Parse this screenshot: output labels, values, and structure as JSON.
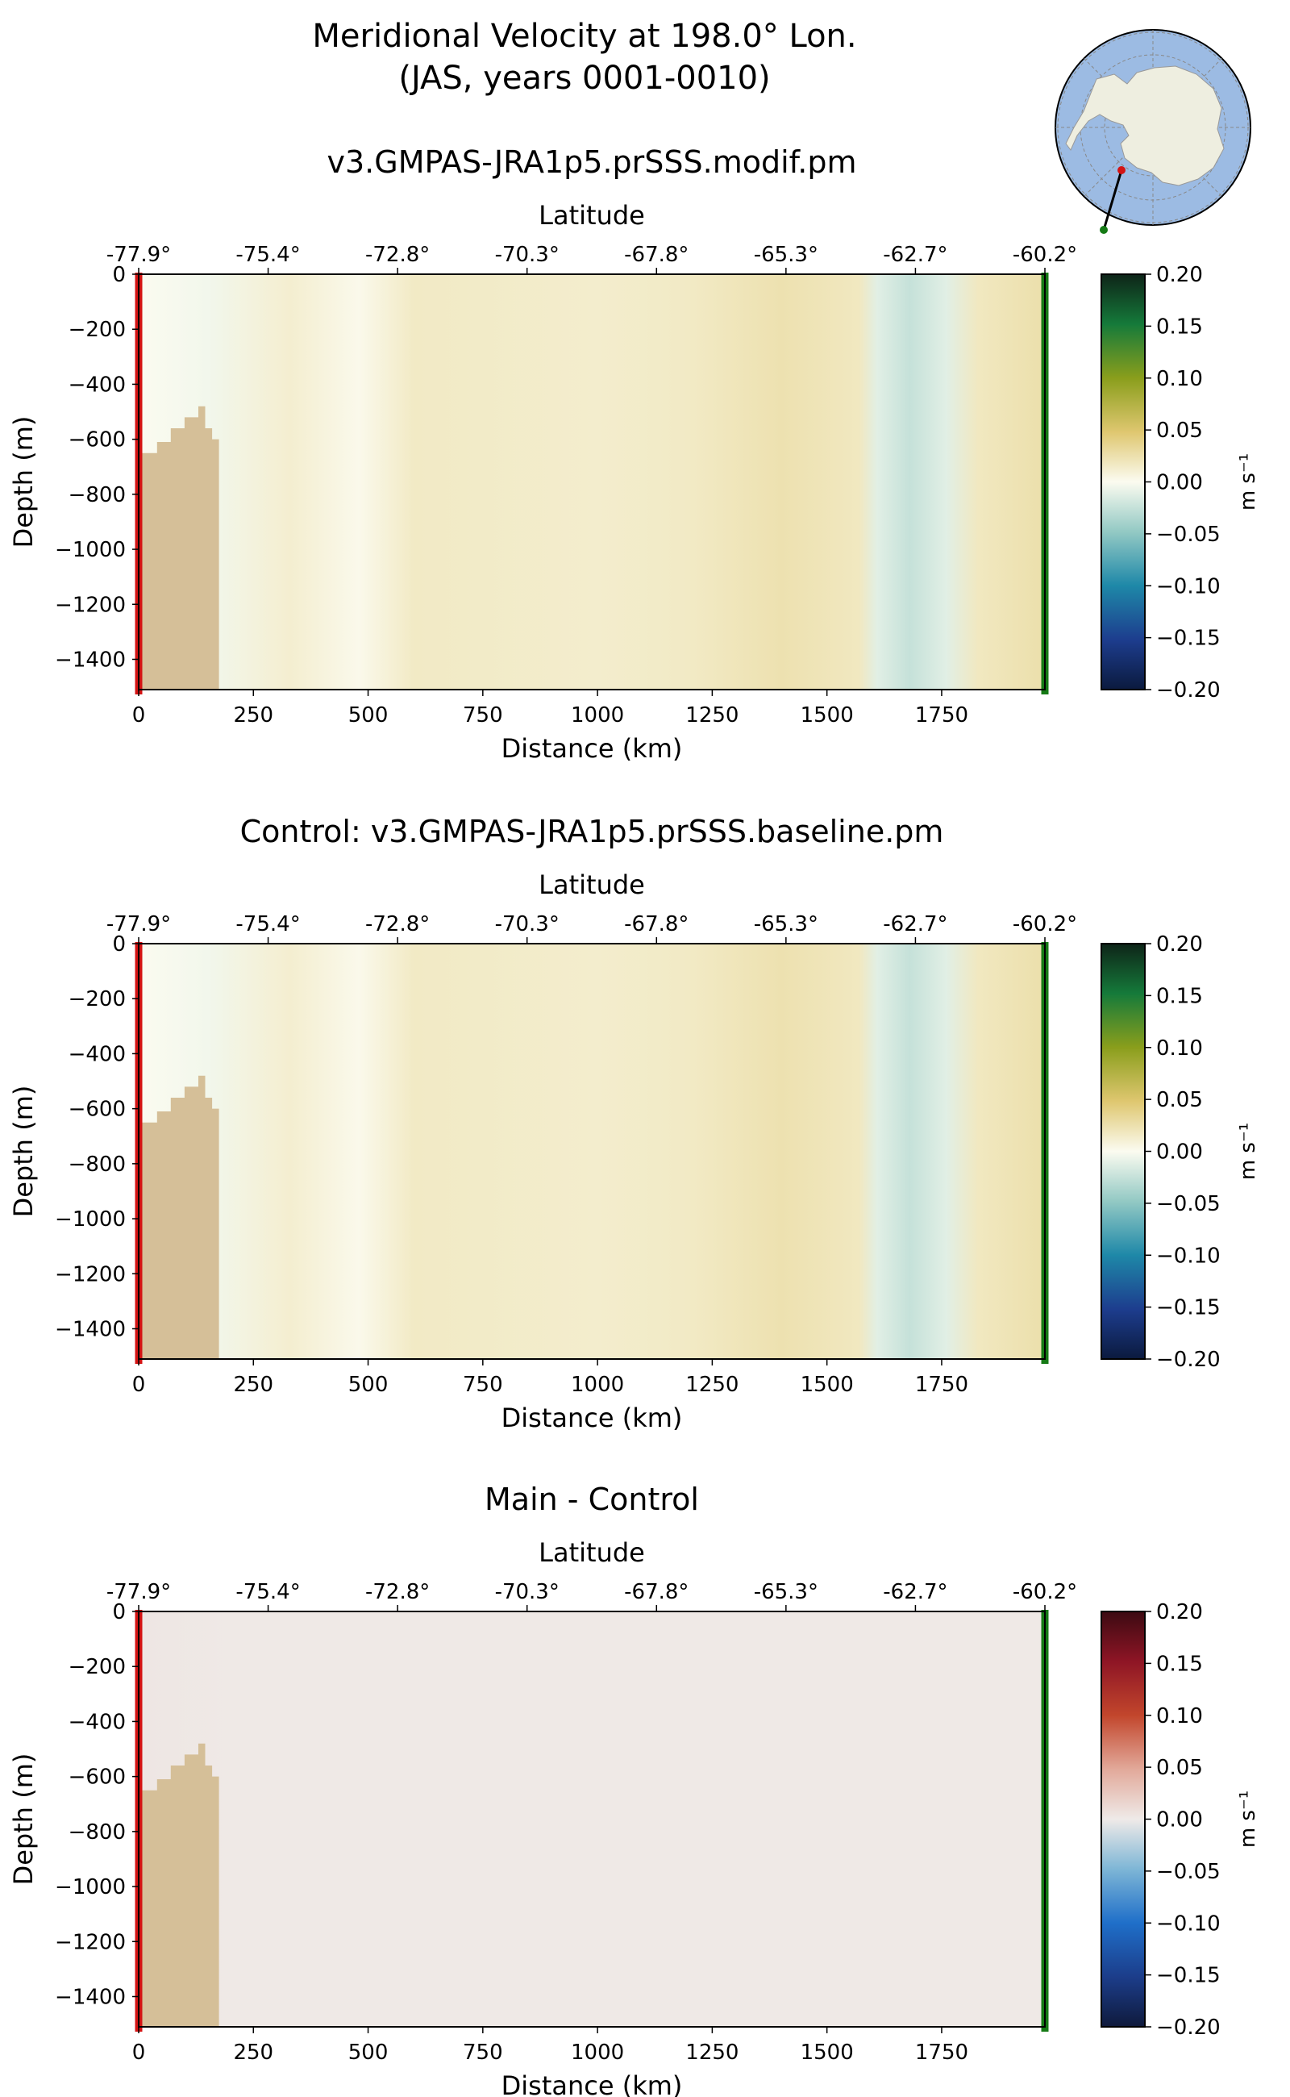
{
  "figure": {
    "title_line1": "Meridional Velocity at 198.0° Lon.",
    "title_line2": "(JAS, years 0001-0010)"
  },
  "colors": {
    "bathymetry": "#d5bf98",
    "start_marker": "#d41414",
    "end_marker": "#157a15",
    "globe_ocean": "#9cbbe3",
    "globe_land": "#eeeee0"
  },
  "chart_data": [
    {
      "type": "heatmap",
      "title": "v3.GMPAS-JRA1p5.prSSS.modif.pm",
      "xlabel": "Distance (km)",
      "ylabel": "Depth (m)",
      "top_xlabel": "Latitude",
      "xlim": [
        0,
        1975
      ],
      "ylim": [
        -1510,
        0
      ],
      "xticks": [
        "0",
        "250",
        "500",
        "750",
        "1000",
        "1250",
        "1500",
        "1750"
      ],
      "yticks": [
        "0",
        "−200",
        "−400",
        "−600",
        "−800",
        "−1000",
        "−1200",
        "−1400"
      ],
      "latitude_ticks": [
        "-77.9°",
        "-75.4°",
        "-72.8°",
        "-70.3°",
        "-67.8°",
        "-65.3°",
        "-62.7°",
        "-60.2°"
      ],
      "colorbar": {
        "label": "m s⁻¹",
        "colormap": "diverging brown-white-green",
        "vmin": -0.2,
        "vmax": 0.2,
        "ticks": [
          "0.20",
          "0.15",
          "0.10",
          "0.05",
          "0.00",
          "−0.05",
          "−0.10",
          "−0.15",
          "−0.20"
        ]
      },
      "velocity_profile": [
        {
          "x": 0,
          "v": 0.0
        },
        {
          "x": 150,
          "v": -0.004
        },
        {
          "x": 330,
          "v": 0.012
        },
        {
          "x": 480,
          "v": 0.002
        },
        {
          "x": 600,
          "v": 0.016
        },
        {
          "x": 1000,
          "v": 0.013
        },
        {
          "x": 1200,
          "v": 0.016
        },
        {
          "x": 1400,
          "v": 0.024
        },
        {
          "x": 1570,
          "v": 0.018
        },
        {
          "x": 1610,
          "v": -0.012
        },
        {
          "x": 1680,
          "v": -0.025
        },
        {
          "x": 1760,
          "v": -0.012
        },
        {
          "x": 1830,
          "v": 0.018
        },
        {
          "x": 1960,
          "v": 0.025
        }
      ],
      "bathymetry_outline": [
        [
          0,
          -1510
        ],
        [
          0,
          -650
        ],
        [
          40,
          -650
        ],
        [
          40,
          -610
        ],
        [
          70,
          -610
        ],
        [
          70,
          -560
        ],
        [
          100,
          -560
        ],
        [
          100,
          -520
        ],
        [
          130,
          -520
        ],
        [
          130,
          -480
        ],
        [
          145,
          -480
        ],
        [
          145,
          -560
        ],
        [
          160,
          -560
        ],
        [
          160,
          -600
        ],
        [
          175,
          -600
        ],
        [
          175,
          -1510
        ]
      ]
    },
    {
      "type": "heatmap",
      "title": "Control: v3.GMPAS-JRA1p5.prSSS.baseline.pm",
      "xlabel": "Distance (km)",
      "ylabel": "Depth (m)",
      "top_xlabel": "Latitude",
      "xlim": [
        0,
        1975
      ],
      "ylim": [
        -1510,
        0
      ],
      "xticks": [
        "0",
        "250",
        "500",
        "750",
        "1000",
        "1250",
        "1500",
        "1750"
      ],
      "yticks": [
        "0",
        "−200",
        "−400",
        "−600",
        "−800",
        "−1000",
        "−1200",
        "−1400"
      ],
      "latitude_ticks": [
        "-77.9°",
        "-75.4°",
        "-72.8°",
        "-70.3°",
        "-67.8°",
        "-65.3°",
        "-62.7°",
        "-60.2°"
      ],
      "colorbar": {
        "label": "m s⁻¹",
        "colormap": "diverging brown-white-green",
        "vmin": -0.2,
        "vmax": 0.2,
        "ticks": [
          "0.20",
          "0.15",
          "0.10",
          "0.05",
          "0.00",
          "−0.05",
          "−0.10",
          "−0.15",
          "−0.20"
        ]
      },
      "velocity_profile": [
        {
          "x": 0,
          "v": 0.0
        },
        {
          "x": 150,
          "v": -0.004
        },
        {
          "x": 330,
          "v": 0.012
        },
        {
          "x": 480,
          "v": 0.002
        },
        {
          "x": 600,
          "v": 0.016
        },
        {
          "x": 1000,
          "v": 0.013
        },
        {
          "x": 1200,
          "v": 0.016
        },
        {
          "x": 1400,
          "v": 0.024
        },
        {
          "x": 1570,
          "v": 0.018
        },
        {
          "x": 1610,
          "v": -0.012
        },
        {
          "x": 1680,
          "v": -0.025
        },
        {
          "x": 1760,
          "v": -0.012
        },
        {
          "x": 1830,
          "v": 0.018
        },
        {
          "x": 1960,
          "v": 0.025
        }
      ],
      "bathymetry_outline": [
        [
          0,
          -1510
        ],
        [
          0,
          -650
        ],
        [
          40,
          -650
        ],
        [
          40,
          -610
        ],
        [
          70,
          -610
        ],
        [
          70,
          -560
        ],
        [
          100,
          -560
        ],
        [
          100,
          -520
        ],
        [
          130,
          -520
        ],
        [
          130,
          -480
        ],
        [
          145,
          -480
        ],
        [
          145,
          -560
        ],
        [
          160,
          -560
        ],
        [
          160,
          -600
        ],
        [
          175,
          -600
        ],
        [
          175,
          -1510
        ]
      ]
    },
    {
      "type": "heatmap",
      "title": "Main - Control",
      "xlabel": "Distance (km)",
      "ylabel": "Depth (m)",
      "top_xlabel": "Latitude",
      "xlim": [
        0,
        1975
      ],
      "ylim": [
        -1510,
        0
      ],
      "xticks": [
        "0",
        "250",
        "500",
        "750",
        "1000",
        "1250",
        "1500",
        "1750"
      ],
      "yticks": [
        "0",
        "−200",
        "−400",
        "−600",
        "−800",
        "−1000",
        "−1200",
        "−1400"
      ],
      "latitude_ticks": [
        "-77.9°",
        "-75.4°",
        "-72.8°",
        "-70.3°",
        "-67.8°",
        "-65.3°",
        "-62.7°",
        "-60.2°"
      ],
      "colorbar": {
        "label": "m s⁻¹",
        "colormap": "diverging blue-white-red",
        "vmin": -0.2,
        "vmax": 0.2,
        "ticks": [
          "0.20",
          "0.15",
          "0.10",
          "0.05",
          "0.00",
          "−0.05",
          "−0.10",
          "−0.15",
          "−0.20"
        ]
      },
      "velocity_profile": [
        {
          "x": 0,
          "v": 0.003
        },
        {
          "x": 200,
          "v": 0.001
        },
        {
          "x": 1960,
          "v": 0.001
        }
      ],
      "bathymetry_outline": [
        [
          0,
          -1510
        ],
        [
          0,
          -650
        ],
        [
          40,
          -650
        ],
        [
          40,
          -610
        ],
        [
          70,
          -610
        ],
        [
          70,
          -560
        ],
        [
          100,
          -560
        ],
        [
          100,
          -520
        ],
        [
          130,
          -520
        ],
        [
          130,
          -480
        ],
        [
          145,
          -480
        ],
        [
          145,
          -560
        ],
        [
          160,
          -560
        ],
        [
          160,
          -600
        ],
        [
          175,
          -600
        ],
        [
          175,
          -1510
        ]
      ]
    }
  ]
}
